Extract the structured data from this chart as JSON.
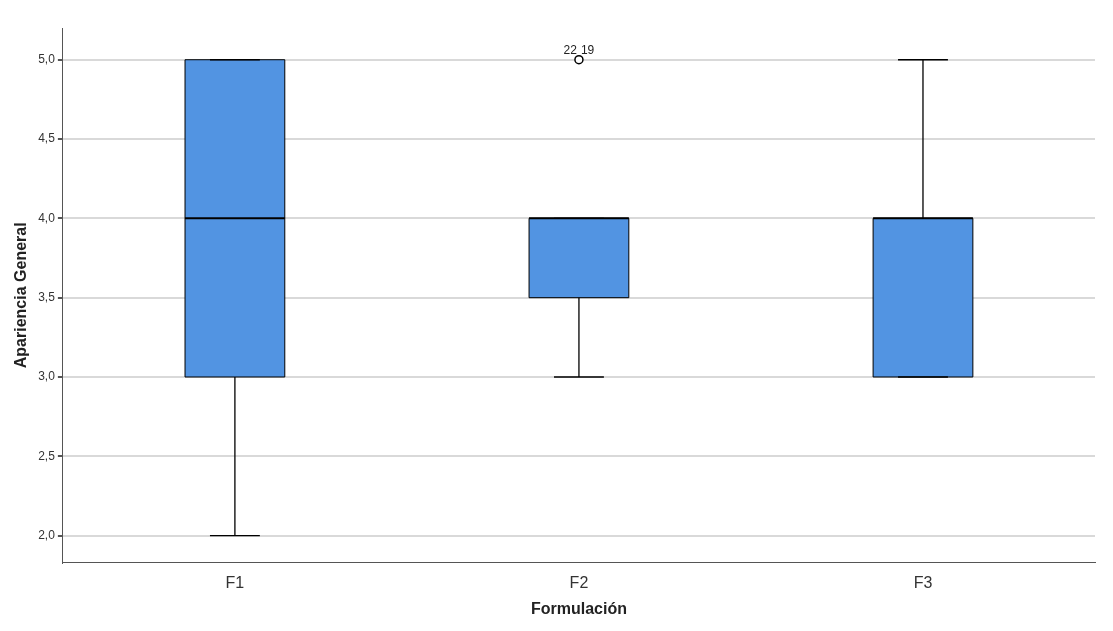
{
  "chart_data": {
    "type": "box",
    "xlabel": "Formulación",
    "ylabel": "Apariencia General",
    "categories": [
      "F1",
      "F2",
      "F3"
    ],
    "boxes": [
      {
        "low": 2,
        "q1": 3,
        "median": 4,
        "q3": 5,
        "high": 5
      },
      {
        "low": 3,
        "q1": 3.5,
        "median": 4,
        "q3": 4,
        "high": 4,
        "outliers": [
          5
        ]
      },
      {
        "low": 3,
        "q1": 3,
        "median": 4,
        "q3": 4,
        "high": 5
      }
    ],
    "color": "#5294e2",
    "ylim": [
      1.83,
      5.2
    ],
    "yticks": [
      {
        "value": 2,
        "label": "2,0"
      },
      {
        "value": 2.5,
        "label": "2,5"
      },
      {
        "value": 3,
        "label": "3,0"
      },
      {
        "value": 3.5,
        "label": "3,5"
      },
      {
        "value": 4,
        "label": "4,0"
      },
      {
        "value": 4.5,
        "label": "4,5"
      },
      {
        "value": 5,
        "label": "5,0"
      }
    ],
    "grid": "y",
    "legend": false,
    "marker": "circle",
    "annotations": [
      "22",
      "19"
    ]
  }
}
